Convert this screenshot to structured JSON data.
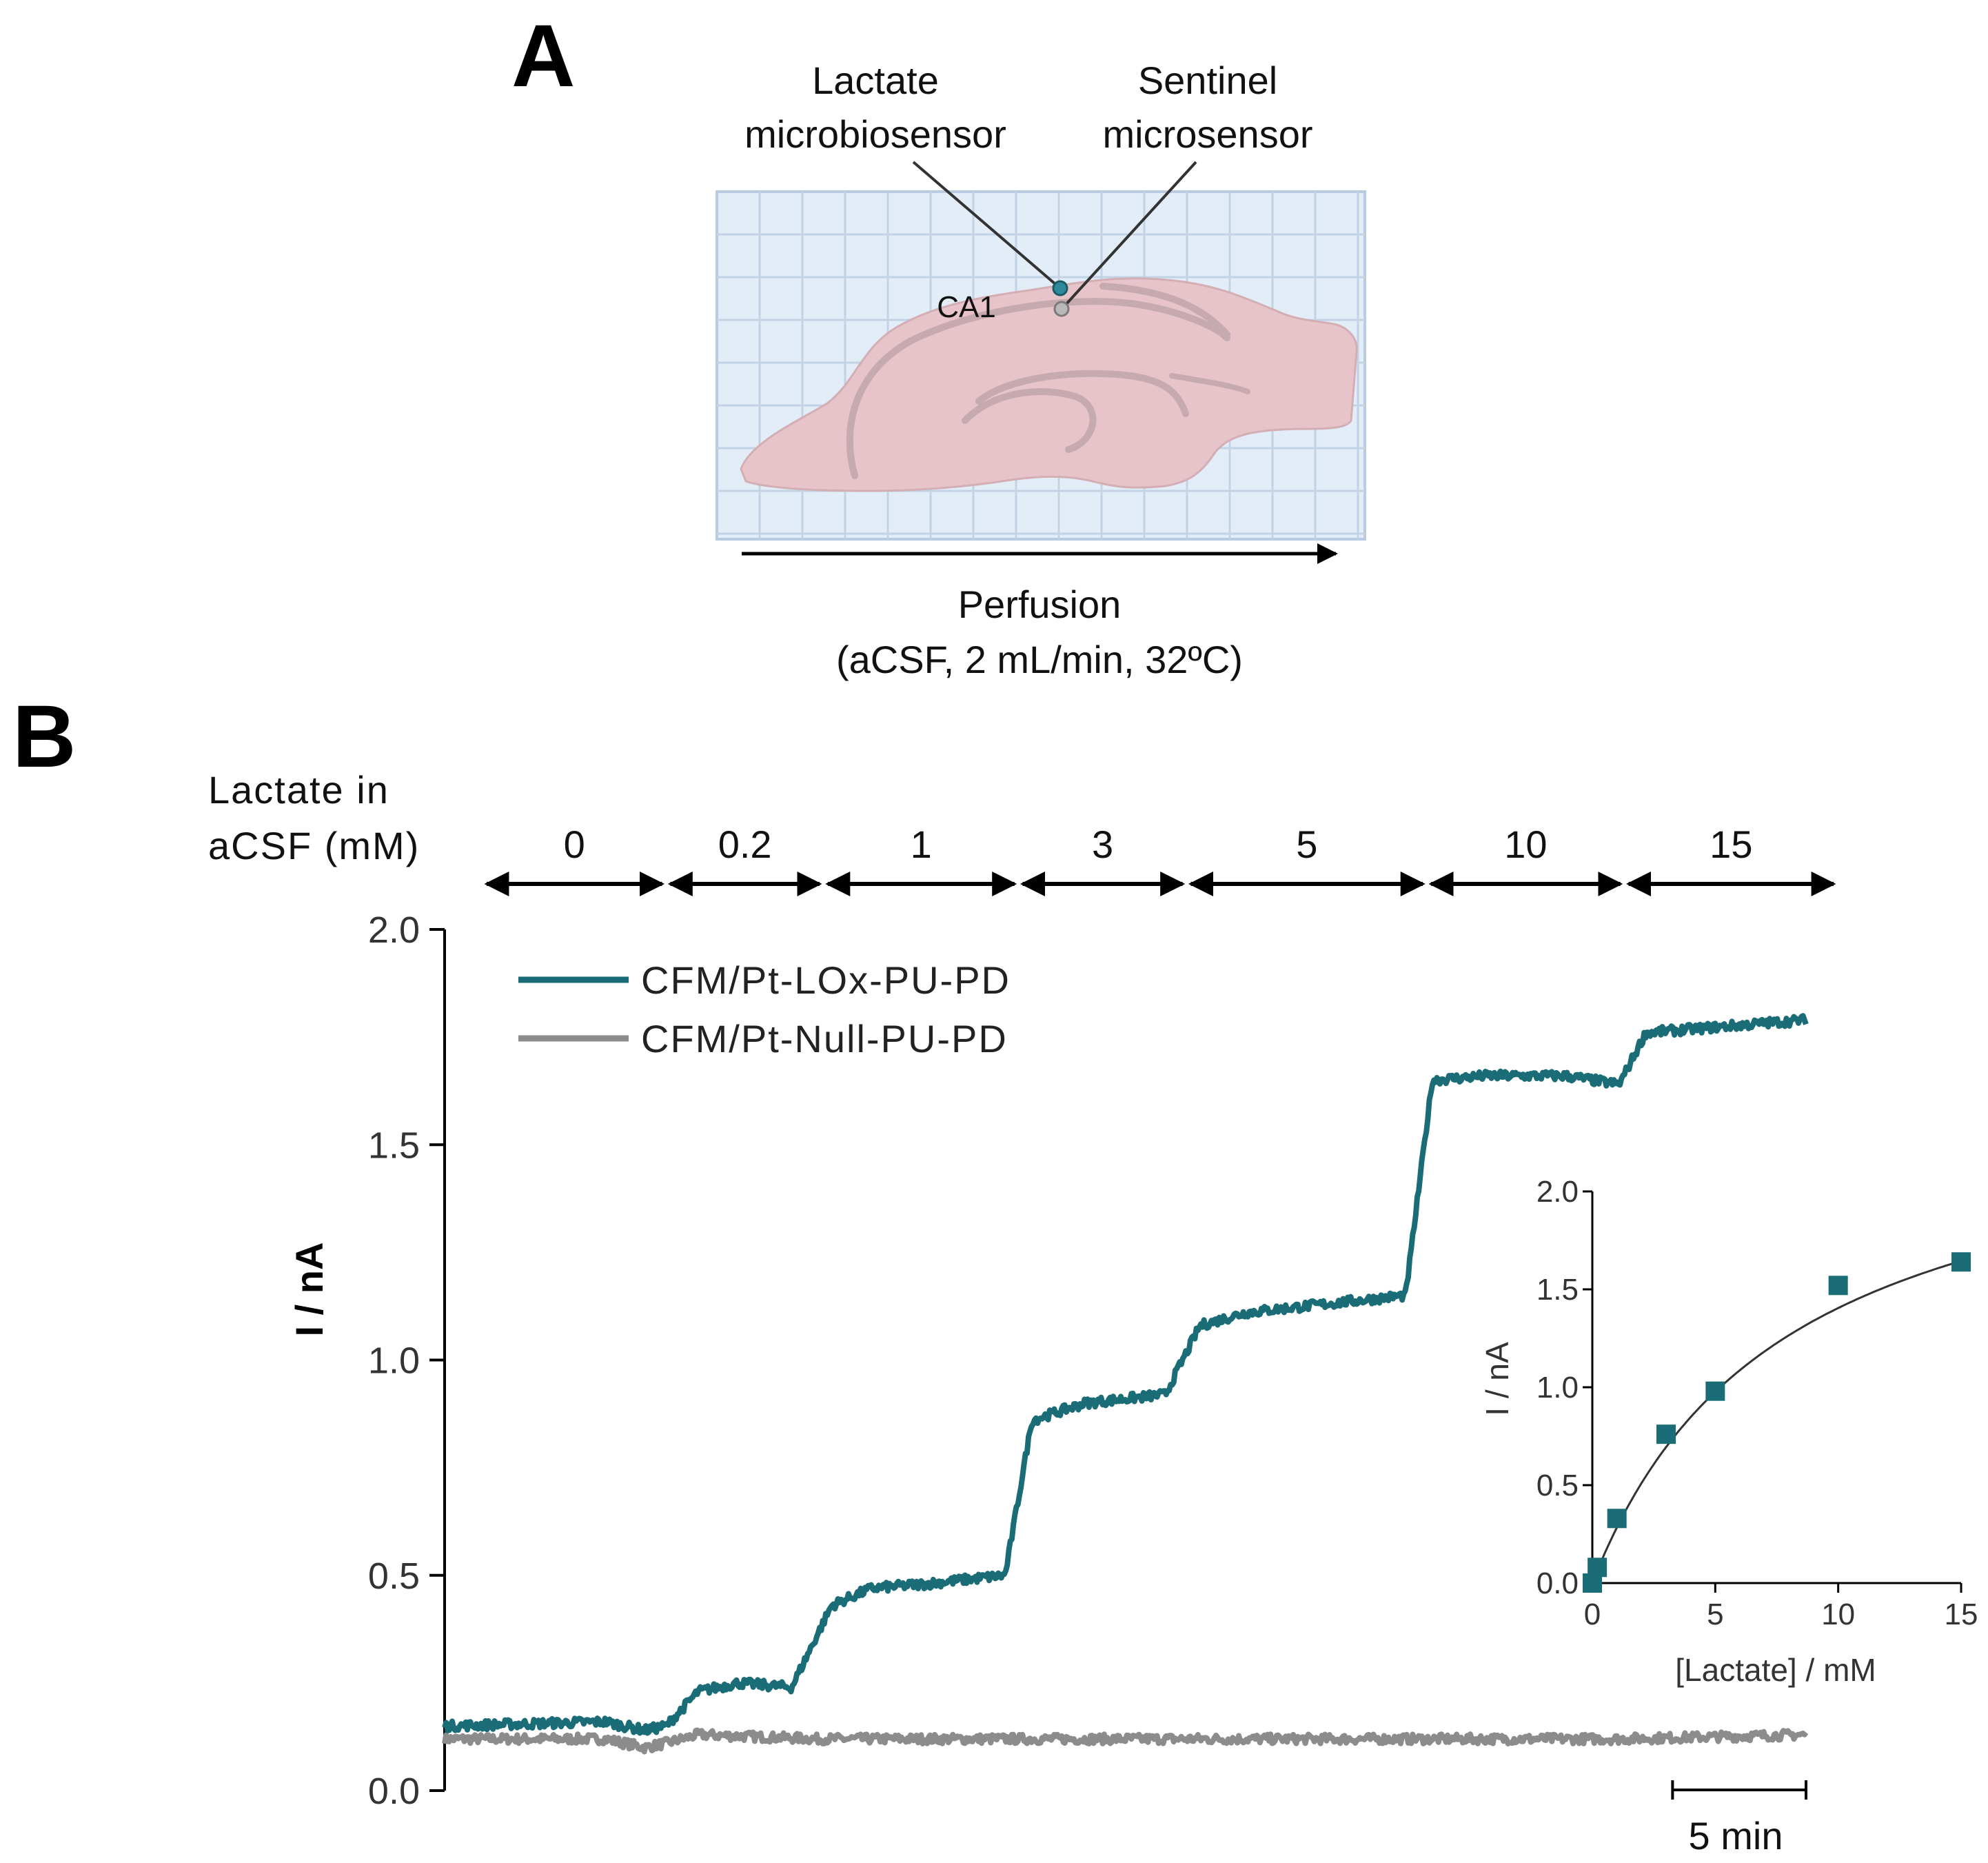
{
  "panel_a": {
    "letter": "A",
    "label_lactate_1": "Lactate",
    "label_lactate_2": "microbiosensor",
    "label_sentinel_1": "Sentinel",
    "label_sentinel_2": "microsensor",
    "label_region": "CA1",
    "perfusion_1": "Perfusion",
    "perfusion_2": "(aCSF, 2 mL/min, 32ºC)"
  },
  "panel_b": {
    "letter": "B",
    "lactate_label_1": "Lactate in",
    "lactate_label_2": "aCSF (mM)",
    "scale_bar": "5 min"
  },
  "colors": {
    "lox": "#1a6c77",
    "null": "#8c8c8c",
    "grid_bg": "#e3edf7",
    "grid_line": "#c2d3e6",
    "slice": "#e6c4c9",
    "slice_vein": "#c8aeb3"
  },
  "chart_data": [
    {
      "type": "line",
      "title": "",
      "xlabel": "",
      "ylabel": "I / nA",
      "ylim": [
        0,
        2.0
      ],
      "yticks": [
        "0.0",
        "0.5",
        "1.0",
        "1.5",
        "2.0"
      ],
      "x_units": "min",
      "xlim": [
        0,
        51
      ],
      "concentration_segments": [
        {
          "label": "0",
          "start": 0,
          "end": 8.3
        },
        {
          "label": "0.2",
          "start": 8.3,
          "end": 14.2
        },
        {
          "label": "1",
          "start": 14.2,
          "end": 21.5
        },
        {
          "label": "3",
          "start": 21.5,
          "end": 27.8
        },
        {
          "label": "5",
          "start": 27.8,
          "end": 36.8
        },
        {
          "label": "10",
          "start": 36.8,
          "end": 44.2
        },
        {
          "label": "15",
          "start": 44.2,
          "end": 51
        }
      ],
      "series": [
        {
          "name": "CFM/Pt-LOx-PU-PD",
          "points": [
            [
              0,
              0.15
            ],
            [
              6,
              0.16
            ],
            [
              7.5,
              0.14
            ],
            [
              8.3,
              0.15
            ],
            [
              9.5,
              0.23
            ],
            [
              11,
              0.25
            ],
            [
              13,
              0.24
            ],
            [
              14.5,
              0.43
            ],
            [
              16,
              0.47
            ],
            [
              18,
              0.48
            ],
            [
              21,
              0.5
            ],
            [
              22,
              0.86
            ],
            [
              24,
              0.9
            ],
            [
              27,
              0.92
            ],
            [
              28.3,
              1.08
            ],
            [
              30,
              1.11
            ],
            [
              33,
              1.13
            ],
            [
              36,
              1.15
            ],
            [
              37,
              1.65
            ],
            [
              39,
              1.66
            ],
            [
              42,
              1.66
            ],
            [
              44,
              1.64
            ],
            [
              45,
              1.76
            ],
            [
              47,
              1.77
            ],
            [
              51,
              1.79
            ]
          ]
        },
        {
          "name": "CFM/Pt-Null-PU-PD",
          "points": [
            [
              0,
              0.12
            ],
            [
              6,
              0.12
            ],
            [
              7.5,
              0.1
            ],
            [
              8.3,
              0.11
            ],
            [
              9.5,
              0.13
            ],
            [
              14,
              0.12
            ],
            [
              22,
              0.12
            ],
            [
              28,
              0.12
            ],
            [
              37,
              0.12
            ],
            [
              44,
              0.12
            ],
            [
              51,
              0.13
            ]
          ]
        }
      ],
      "scale_bar_minutes": 5
    },
    {
      "type": "scatter",
      "title": "",
      "xlabel": "[Lactate] / mM",
      "ylabel": "I / nA",
      "xlim": [
        0,
        15
      ],
      "ylim": [
        0,
        2.0
      ],
      "xticks": [
        "0",
        "5",
        "10",
        "15"
      ],
      "yticks": [
        "0.0",
        "0.5",
        "1.0",
        "1.5",
        "2.0"
      ],
      "series": [
        {
          "name": "CFM/Pt-LOx-PU-PD",
          "x": [
            0,
            0.2,
            1,
            3,
            5,
            10,
            15
          ],
          "y": [
            0.0,
            0.08,
            0.33,
            0.76,
            0.98,
            1.52,
            1.64
          ]
        }
      ],
      "fit": {
        "model": "michaelis-menten",
        "vmax": 2.5,
        "km": 7.8
      }
    }
  ]
}
